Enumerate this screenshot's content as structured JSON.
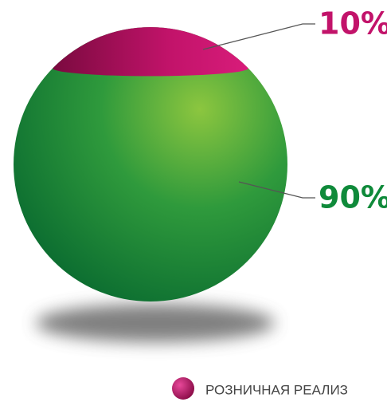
{
  "chart_data": {
    "type": "pie",
    "categories": [
      "РОЗНИЧНАЯ РЕАЛИЗ",
      null
    ],
    "values": [
      10,
      90
    ],
    "value_labels": [
      "10%",
      "90%"
    ],
    "colors": [
      "#c2136a",
      "#0f8a3a"
    ]
  }
}
